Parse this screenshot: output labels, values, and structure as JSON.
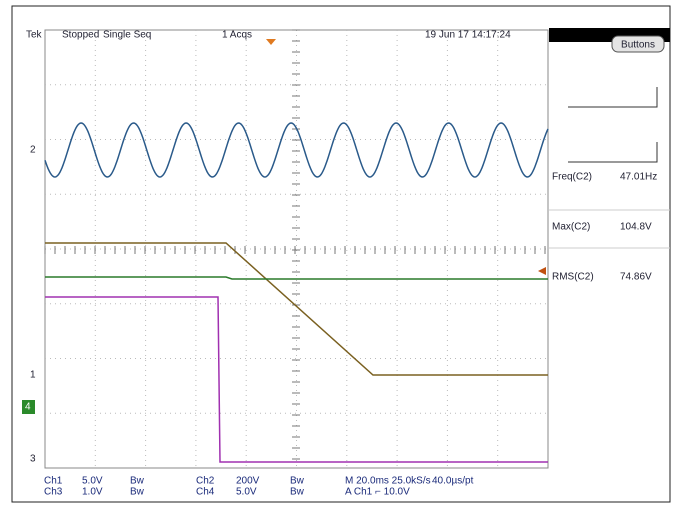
{
  "header": {
    "brand": "Tek",
    "status": "Stopped",
    "mode": "Single Seq",
    "acqs": "1 Acqs",
    "datetime": "19 Jun 17 14:17:24"
  },
  "panel": {
    "button": "Buttons",
    "measurements": [
      {
        "label": "Freq(C2)",
        "value": "47.01Hz"
      },
      {
        "label": "Max(C2)",
        "value": "104.8V"
      },
      {
        "label": "RMS(C2)",
        "value": "74.86V"
      }
    ]
  },
  "markers": [
    "2",
    "1",
    "4",
    "3"
  ],
  "footer": {
    "row1": [
      "Ch1",
      "5.0V",
      "Bw",
      "Ch2",
      "200V",
      "Bw",
      "M 20.0ms 25.0kS/s",
      "40.0µs/pt"
    ],
    "row2": [
      "Ch3",
      "1.0V",
      "Bw",
      "Ch4",
      "5.0V",
      "Bw",
      "A Ch1 ⌐ 10.0V"
    ]
  }
}
